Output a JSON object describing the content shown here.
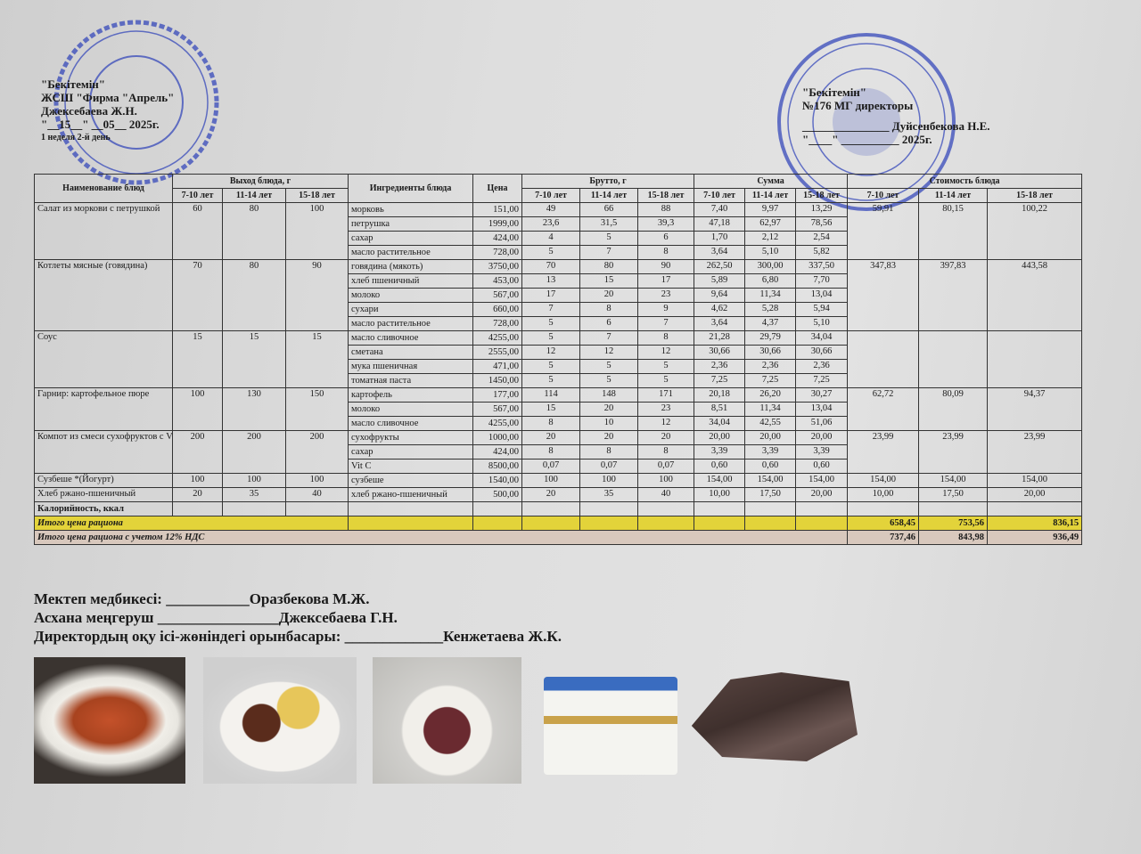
{
  "approval_left": {
    "line1": "\"Бекітемін\"",
    "line2": "ЖСШ \"Фирма \"Апрель\"",
    "line3": "Джексебаева Ж.Н.",
    "line4": "\"__15__\" __05__ 2025г.",
    "week": "1 неделя 2-й день"
  },
  "approval_right": {
    "line1": "\"Бекітемін\"",
    "line2": "№176 МГ директоры",
    "line3": "_______________ Дуйсенбекова Н.Е.",
    "line4": "\"____\" __________ 2025г."
  },
  "stamps": {
    "left_text": "ҚАЗАҚСТАН РЕСПУБЛИКАСЫ АЛМАТЫ ҚАЛАСЫ ФИРМА АПРЕЛЬ",
    "right_text": "АЛМАТЫ ҚАЛАСЫ БІЛІМ БАСҚАРМАСЫНЫҢ №176 ГИМНАЗИЯ КОММУНАЛДЫҚ МЕМЛЕКЕТТІК МЕКЕМЕСІ",
    "color": "#2b3fb8"
  },
  "table": {
    "headers": {
      "dish_name": "Наименование блюд",
      "yield": "Выход блюда, г",
      "ingredients": "Ингредиенты блюда",
      "price": "Цена",
      "brutto": "Брутто, г",
      "sum": "Сумма",
      "cost": "Стоимость блюда",
      "ages": [
        "7-10 лет",
        "11-14 лет",
        "15-18 лет"
      ]
    },
    "dishes": [
      {
        "name": "Салат из моркови с петрушкой",
        "yield": [
          "60",
          "80",
          "100"
        ],
        "cost": [
          "59,91",
          "80,15",
          "100,22"
        ],
        "ingredients": [
          {
            "name": "морковь",
            "price": "151,00",
            "brutto": [
              "49",
              "66",
              "88"
            ],
            "sum": [
              "7,40",
              "9,97",
              "13,29"
            ]
          },
          {
            "name": "петрушка",
            "price": "1999,00",
            "brutto": [
              "23,6",
              "31,5",
              "39,3"
            ],
            "sum": [
              "47,18",
              "62,97",
              "78,56"
            ]
          },
          {
            "name": "сахар",
            "price": "424,00",
            "brutto": [
              "4",
              "5",
              "6"
            ],
            "sum": [
              "1,70",
              "2,12",
              "2,54"
            ]
          },
          {
            "name": "масло растительное",
            "price": "728,00",
            "brutto": [
              "5",
              "7",
              "8"
            ],
            "sum": [
              "3,64",
              "5,10",
              "5,82"
            ]
          }
        ]
      },
      {
        "name": "Котлеты мясные (говядина)",
        "yield": [
          "70",
          "80",
          "90"
        ],
        "cost": [
          "347,83",
          "397,83",
          "443,58"
        ],
        "ingredients": [
          {
            "name": "говядина (мякоть)",
            "price": "3750,00",
            "brutto": [
              "70",
              "80",
              "90"
            ],
            "sum": [
              "262,50",
              "300,00",
              "337,50"
            ]
          },
          {
            "name": "хлеб пшеничный",
            "price": "453,00",
            "brutto": [
              "13",
              "15",
              "17"
            ],
            "sum": [
              "5,89",
              "6,80",
              "7,70"
            ]
          },
          {
            "name": "молоко",
            "price": "567,00",
            "brutto": [
              "17",
              "20",
              "23"
            ],
            "sum": [
              "9,64",
              "11,34",
              "13,04"
            ]
          },
          {
            "name": "сухари",
            "price": "660,00",
            "brutto": [
              "7",
              "8",
              "9"
            ],
            "sum": [
              "4,62",
              "5,28",
              "5,94"
            ]
          },
          {
            "name": "масло растительное",
            "price": "728,00",
            "brutto": [
              "5",
              "6",
              "7"
            ],
            "sum": [
              "3,64",
              "4,37",
              "5,10"
            ]
          }
        ]
      },
      {
        "name": "Соус",
        "yield": [
          "15",
          "15",
          "15"
        ],
        "cost": [
          "",
          "",
          ""
        ],
        "ingredients": [
          {
            "name": "масло сливочное",
            "price": "4255,00",
            "brutto": [
              "5",
              "7",
              "8"
            ],
            "sum": [
              "21,28",
              "29,79",
              "34,04"
            ]
          },
          {
            "name": "сметана",
            "price": "2555,00",
            "brutto": [
              "12",
              "12",
              "12"
            ],
            "sum": [
              "30,66",
              "30,66",
              "30,66"
            ]
          },
          {
            "name": "мука пшеничная",
            "price": "471,00",
            "brutto": [
              "5",
              "5",
              "5"
            ],
            "sum": [
              "2,36",
              "2,36",
              "2,36"
            ]
          },
          {
            "name": "томатная паста",
            "price": "1450,00",
            "brutto": [
              "5",
              "5",
              "5"
            ],
            "sum": [
              "7,25",
              "7,25",
              "7,25"
            ]
          }
        ]
      },
      {
        "name": "Гарнир:  картофельное пюре",
        "yield": [
          "100",
          "130",
          "150"
        ],
        "cost": [
          "62,72",
          "80,09",
          "94,37"
        ],
        "ingredients": [
          {
            "name": "картофель",
            "price": "177,00",
            "brutto": [
              "114",
              "148",
              "171"
            ],
            "sum": [
              "20,18",
              "26,20",
              "30,27"
            ]
          },
          {
            "name": "молоко",
            "price": "567,00",
            "brutto": [
              "15",
              "20",
              "23"
            ],
            "sum": [
              "8,51",
              "11,34",
              "13,04"
            ]
          },
          {
            "name": "масло сливочное",
            "price": "4255,00",
            "brutto": [
              "8",
              "10",
              "12"
            ],
            "sum": [
              "34,04",
              "42,55",
              "51,06"
            ]
          }
        ]
      },
      {
        "name": "Компот из смеси сухофруктов с Vit C",
        "yield": [
          "200",
          "200",
          "200"
        ],
        "cost": [
          "23,99",
          "23,99",
          "23,99"
        ],
        "ingredients": [
          {
            "name": "сухофрукты",
            "price": "1000,00",
            "brutto": [
              "20",
              "20",
              "20"
            ],
            "sum": [
              "20,00",
              "20,00",
              "20,00"
            ]
          },
          {
            "name": "сахар",
            "price": "424,00",
            "brutto": [
              "8",
              "8",
              "8"
            ],
            "sum": [
              "3,39",
              "3,39",
              "3,39"
            ]
          },
          {
            "name": "Vit C",
            "price": "8500,00",
            "brutto": [
              "0,07",
              "0,07",
              "0,07"
            ],
            "sum": [
              "0,60",
              "0,60",
              "0,60"
            ]
          }
        ]
      },
      {
        "name": "Сузбеше *(Йогурт)",
        "yield": [
          "100",
          "100",
          "100"
        ],
        "cost": [
          "154,00",
          "154,00",
          "154,00"
        ],
        "ingredients": [
          {
            "name": "сузбеше",
            "price": "1540,00",
            "brutto": [
              "100",
              "100",
              "100"
            ],
            "sum": [
              "154,00",
              "154,00",
              "154,00"
            ]
          }
        ]
      },
      {
        "name": "Хлеб ржано-пшеничный",
        "yield": [
          "20",
          "35",
          "40"
        ],
        "cost": [
          "10,00",
          "17,50",
          "20,00"
        ],
        "ingredients": [
          {
            "name": "хлеб ржано-пшеничный",
            "price": "500,00",
            "brutto": [
              "20",
              "35",
              "40"
            ],
            "sum": [
              "10,00",
              "17,50",
              "20,00"
            ]
          }
        ]
      }
    ],
    "calories_label": "Калорийность, ккал",
    "total_label": "Итого цена рациона",
    "total_values": [
      "658,45",
      "753,56",
      "836,15"
    ],
    "total_vat_label": "Итого цена рациона с учетом 12% НДС",
    "total_vat_values": [
      "737,46",
      "843,98",
      "936,49"
    ],
    "total_color": "#e3d33a",
    "total_vat_color": "#d8c8bd"
  },
  "signatures": {
    "nurse": "Мектеп медбикесі: ___________Оразбекова М.Ж.",
    "canteen": "Асхана меңгеруш ________________Джексебаева Г.Н.",
    "deputy": "Директордың оқу ісі-жөніндегі орынбасары: _____________Кенжетаева Ж.К."
  },
  "photos": [
    "carrot-salad-photo",
    "meat-cutlet-with-mashed-potato-photo",
    "compote-cup-photo",
    "yogurt-cups-photo",
    "rye-bread-photo"
  ]
}
